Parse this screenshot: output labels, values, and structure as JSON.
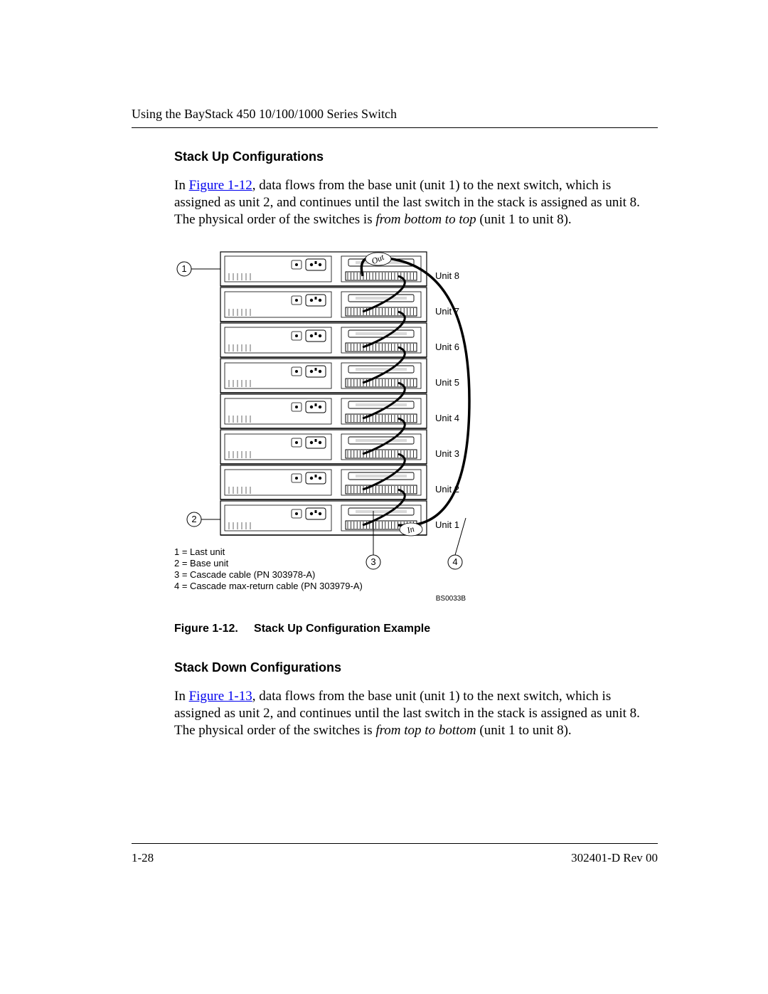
{
  "running_head": "Using the BayStack 450 10/100/1000 Series Switch",
  "section1": {
    "heading": "Stack Up Configurations",
    "para_pre": "In ",
    "xref": "Figure 1-12",
    "para_post_a": ", data flows from the base unit (unit 1) to the next switch, which is assigned as unit 2, and continues until the last switch in the stack is assigned as unit 8. The physical order of the switches is ",
    "ital": "from bottom to top",
    "para_post_b": " (unit 1 to unit 8)."
  },
  "figure": {
    "caption_a": "Figure 1-12.",
    "caption_b": "Stack Up Configuration Example",
    "bscode": "BS0033B",
    "out_label": "Out",
    "in_label": "In",
    "callouts": {
      "c1": "1",
      "c2": "2",
      "c3": "3",
      "c4": "4"
    },
    "legend": {
      "l1": "1 = Last unit",
      "l2": "2 = Base unit",
      "l3": "3 = Cascade cable (PN 303978-A)",
      "l4": "4 = Cascade max-return cable (PN 303979-A)"
    },
    "units": [
      "Unit 8",
      "Unit 7",
      "Unit 6",
      "Unit 5",
      "Unit 4",
      "Unit 3",
      "Unit 2",
      "Unit 1"
    ],
    "style": {
      "unit_count": 8,
      "unit_width": 290,
      "unit_height": 48,
      "unit_gap": 2,
      "stroke": "#000000",
      "stroke_width": 1.2,
      "cable_width": 3,
      "return_cable_width": 3.5,
      "label_font": "Helvetica",
      "unit_label_size": 13
    }
  },
  "section2": {
    "heading": "Stack Down Configurations",
    "para_pre": "In ",
    "xref": "Figure 1-13",
    "para_post_a": ", data flows from the base unit (unit 1) to the next switch, which is assigned as unit 2, and continues until the last switch in the stack is assigned as unit 8. The physical order of the switches is ",
    "ital": "from top to bottom",
    "para_post_b": " (unit 1 to unit 8)."
  },
  "footer": {
    "page": "1-28",
    "docrev": "302401-D Rev 00"
  }
}
